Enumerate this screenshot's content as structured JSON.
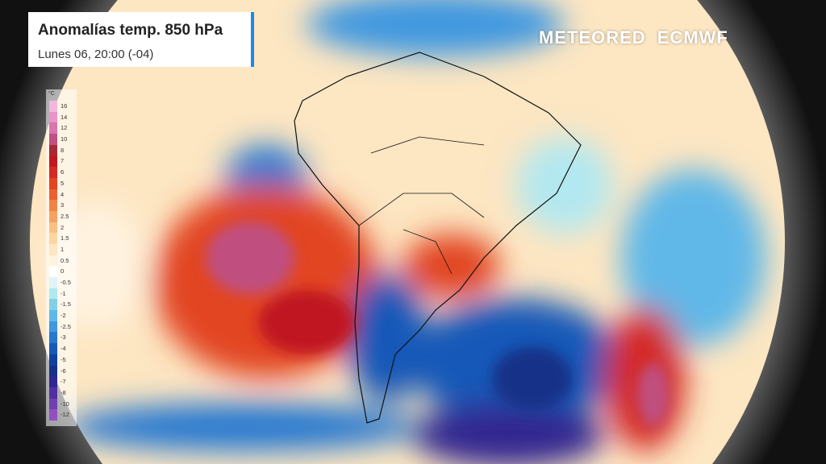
{
  "header": {
    "title": "Anomalías temp. 850 hPa",
    "subtitle": "Lunes 06, 20:00 (-04)"
  },
  "logo": {
    "brand": "METEORED",
    "partner": "ECMWF"
  },
  "legend": {
    "unit": "°C",
    "items": [
      {
        "label": "16",
        "color": "#f2b8dc"
      },
      {
        "label": "14",
        "color": "#e894c8"
      },
      {
        "label": "12",
        "color": "#d874b0"
      },
      {
        "label": "10",
        "color": "#c05080"
      },
      {
        "label": "8",
        "color": "#a82838"
      },
      {
        "label": "7",
        "color": "#c01820"
      },
      {
        "label": "6",
        "color": "#d42a26"
      },
      {
        "label": "5",
        "color": "#e24424"
      },
      {
        "label": "4",
        "color": "#ea6232"
      },
      {
        "label": "3",
        "color": "#f08444"
      },
      {
        "label": "2.5",
        "color": "#f4a262"
      },
      {
        "label": "2",
        "color": "#f8c084"
      },
      {
        "label": "1.5",
        "color": "#fcd6a2"
      },
      {
        "label": "1",
        "color": "#fde6c2"
      },
      {
        "label": "0.5",
        "color": "#fff3e0"
      },
      {
        "label": "0",
        "color": "#ffffff"
      },
      {
        "label": "-0.5",
        "color": "#e0f4f8"
      },
      {
        "label": "-1",
        "color": "#b2e8f0"
      },
      {
        "label": "-1.5",
        "color": "#82d0e8"
      },
      {
        "label": "-2",
        "color": "#60b8e8"
      },
      {
        "label": "-2.5",
        "color": "#4098e0"
      },
      {
        "label": "-3",
        "color": "#2878d0"
      },
      {
        "label": "-4",
        "color": "#1858b8"
      },
      {
        "label": "-5",
        "color": "#1040a0"
      },
      {
        "label": "-6",
        "color": "#183088"
      },
      {
        "label": "-7",
        "color": "#302890"
      },
      {
        "label": "-8",
        "color": "#5030a0"
      },
      {
        "label": "-10",
        "color": "#7040b0"
      },
      {
        "label": "-12",
        "color": "#9050c0"
      }
    ]
  }
}
